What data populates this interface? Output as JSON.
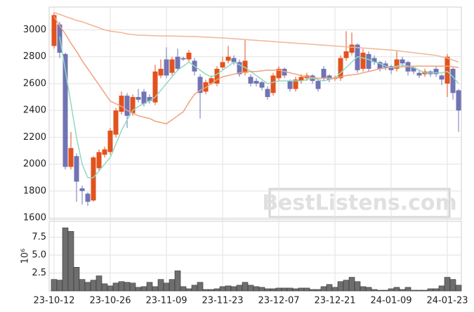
{
  "chart_data": [
    {
      "type": "candlestick",
      "annotation": "BestListens.com",
      "up_color": "#e2521d",
      "down_color": "#7073b5",
      "open": [
        2880,
        3040,
        2820,
        1980,
        2060,
        1820,
        1780,
        1730,
        1970,
        2070,
        2090,
        2220,
        2390,
        2510,
        2380,
        2500,
        2540,
        2500,
        2460,
        2660,
        2780,
        2680,
        2800,
        2790,
        2780,
        2770,
        2650,
        2540,
        2600,
        2600,
        2720,
        2770,
        2790,
        2760,
        2680,
        2650,
        2620,
        2610,
        2560,
        2530,
        2640,
        2710,
        2620,
        2560,
        2620,
        2640,
        2660,
        2620,
        2710,
        2660,
        2635,
        2640,
        2790,
        2830,
        2890,
        2710,
        2820,
        2790,
        2760,
        2750,
        2730,
        2710,
        2780,
        2760,
        2720,
        2680,
        2670,
        2690,
        2710,
        2660,
        2600,
        2710,
        2550
      ],
      "high": [
        3130,
        3060,
        2830,
        2240,
        2080,
        1840,
        1790,
        2060,
        2110,
        2130,
        2270,
        2420,
        2540,
        2530,
        2520,
        2560,
        2560,
        2520,
        2740,
        2780,
        2870,
        2800,
        2860,
        2800,
        2850,
        2790,
        2670,
        2630,
        2660,
        2730,
        2800,
        2880,
        2810,
        2780,
        2930,
        2670,
        2640,
        2620,
        2580,
        2680,
        2730,
        2720,
        2630,
        2650,
        2670,
        2680,
        2670,
        2630,
        2730,
        2670,
        2660,
        2810,
        2990,
        2980,
        2900,
        2860,
        2840,
        2810,
        2770,
        2770,
        2740,
        2840,
        2800,
        2770,
        2730,
        2700,
        2710,
        2700,
        2730,
        2670,
        2820,
        2720,
        2560
      ],
      "low": [
        2860,
        2790,
        1960,
        1960,
        1720,
        1700,
        1690,
        1720,
        1950,
        2050,
        2070,
        2200,
        2370,
        2270,
        2360,
        2460,
        2430,
        2450,
        2440,
        2640,
        2640,
        2660,
        2700,
        2770,
        2760,
        2660,
        2340,
        2520,
        2590,
        2580,
        2700,
        2750,
        2740,
        2650,
        2660,
        2580,
        2580,
        2550,
        2480,
        2510,
        2620,
        2640,
        2540,
        2540,
        2600,
        2620,
        2600,
        2540,
        2620,
        2610,
        2620,
        2620,
        2770,
        2810,
        2680,
        2690,
        2690,
        2740,
        2690,
        2700,
        2670,
        2690,
        2730,
        2660,
        2670,
        2640,
        2650,
        2650,
        2650,
        2590,
        2500,
        2480,
        2240
      ],
      "close": [
        3110,
        2830,
        1980,
        2120,
        1870,
        1800,
        1720,
        2050,
        2090,
        2110,
        2250,
        2400,
        2510,
        2360,
        2500,
        2480,
        2450,
        2470,
        2690,
        2710,
        2660,
        2780,
        2710,
        2780,
        2830,
        2690,
        2530,
        2610,
        2640,
        2710,
        2760,
        2800,
        2760,
        2670,
        2770,
        2600,
        2600,
        2570,
        2500,
        2660,
        2710,
        2660,
        2560,
        2630,
        2650,
        2660,
        2620,
        2560,
        2640,
        2630,
        2645,
        2790,
        2840,
        2890,
        2700,
        2830,
        2710,
        2760,
        2710,
        2720,
        2700,
        2780,
        2750,
        2690,
        2690,
        2660,
        2690,
        2670,
        2670,
        2630,
        2800,
        2530,
        2400
      ],
      "lines": [
        {
          "color": "#8fd9c0",
          "values": [
            null,
            2950,
            2700,
            2450,
            2200,
            2000,
            1900,
            1900,
            1950,
            2000,
            2050,
            2150,
            2250,
            2330,
            2400,
            2430,
            2450,
            2470,
            2500,
            2550,
            2600,
            2650,
            2700,
            2730,
            2760,
            2730,
            2700,
            2670,
            2650,
            2670,
            2700,
            2730,
            2760,
            2740,
            2720,
            2690,
            2660,
            2630,
            2600,
            2610,
            2620,
            2620,
            2620,
            2620,
            2620,
            2630,
            2640,
            2630,
            2620,
            2630,
            2640,
            2680,
            2720,
            2760,
            2800,
            2790,
            2780,
            2760,
            2750,
            2730,
            2720,
            2730,
            2740,
            2730,
            2720,
            2700,
            2680,
            2680,
            2680,
            2680,
            2690,
            2650,
            2600
          ]
        },
        {
          "color": "#eea27e",
          "values": [
            3100,
            3030,
            2970,
            2900,
            2840,
            2770,
            2710,
            2650,
            2590,
            2530,
            2470,
            2450,
            2430,
            2400,
            2380,
            2360,
            2350,
            2340,
            2320,
            2310,
            2300,
            2330,
            2360,
            2390,
            2460,
            2520,
            2550,
            2570,
            2600,
            2630,
            2650,
            2660,
            2670,
            2680,
            2685,
            2690,
            2690,
            2695,
            2700,
            2700,
            2700,
            2690,
            2680,
            2670,
            2660,
            2650,
            2645,
            2640,
            2640,
            2640,
            2640,
            2650,
            2660,
            2665,
            2670,
            2680,
            2690,
            2700,
            2710,
            2715,
            2720,
            2720,
            2725,
            2725,
            2730,
            2730,
            2730,
            2730,
            2730,
            2730,
            2730,
            2725,
            2720
          ]
        },
        {
          "color": "#f0b596",
          "values": [
            3130,
            3115,
            3100,
            3085,
            3070,
            3060,
            3045,
            3030,
            3015,
            3000,
            2990,
            2985,
            2980,
            2970,
            2965,
            2960,
            2960,
            2958,
            2956,
            2955,
            2955,
            2954,
            2953,
            2952,
            2951,
            2950,
            2948,
            2946,
            2944,
            2942,
            2940,
            2937,
            2934,
            2931,
            2928,
            2925,
            2922,
            2919,
            2916,
            2913,
            2910,
            2907,
            2904,
            2901,
            2898,
            2895,
            2892,
            2889,
            2886,
            2883,
            2880,
            2877,
            2874,
            2871,
            2868,
            2865,
            2862,
            2859,
            2856,
            2853,
            2850,
            2845,
            2840,
            2835,
            2830,
            2825,
            2820,
            2815,
            2810,
            2800,
            2790,
            2775,
            2760
          ]
        }
      ],
      "ylim": [
        1590,
        3170
      ],
      "yticks": [
        1600,
        1800,
        2000,
        2200,
        2400,
        2600,
        2800,
        3000
      ],
      "grid": true
    },
    {
      "type": "bar",
      "color": "#6e6e6e",
      "ylabel": "10⁶",
      "categories": [
        "23-10-12",
        null,
        null,
        null,
        null,
        null,
        null,
        null,
        null,
        null,
        "23-10-26",
        null,
        null,
        null,
        null,
        null,
        null,
        null,
        null,
        null,
        "23-11-09",
        null,
        null,
        null,
        null,
        null,
        null,
        null,
        null,
        null,
        "23-11-23",
        null,
        null,
        null,
        null,
        null,
        null,
        null,
        null,
        null,
        "23-12-07",
        null,
        null,
        null,
        null,
        null,
        null,
        null,
        null,
        null,
        "23-12-21",
        null,
        null,
        null,
        null,
        null,
        null,
        null,
        null,
        null,
        "24-01-09",
        null,
        null,
        null,
        null,
        null,
        null,
        null,
        null,
        null,
        "24-01-23",
        null,
        null
      ],
      "values": [
        1.6,
        1.5,
        8.8,
        8.3,
        3.3,
        1.6,
        1.2,
        1.5,
        2.1,
        1.0,
        0.7,
        1.1,
        1.3,
        1.2,
        1.1,
        0.5,
        0.6,
        1.2,
        0.6,
        1.6,
        1.1,
        1.6,
        2.8,
        0.6,
        0.3,
        0.8,
        1.2,
        0.2,
        0.2,
        0.3,
        0.6,
        0.7,
        0.6,
        0.8,
        1.2,
        0.8,
        0.6,
        0.5,
        0.3,
        0.3,
        0.4,
        0.4,
        0.4,
        0.3,
        0.4,
        0.4,
        0.2,
        0.2,
        0.6,
        0.9,
        0.5,
        1.3,
        1.5,
        1.9,
        1.3,
        0.6,
        0.5,
        0.2,
        0.1,
        0.1,
        0.3,
        0.5,
        0.2,
        0.5,
        0.1,
        0.1,
        0.1,
        0.3,
        0.3,
        0.7,
        1.9,
        1.6,
        0.8
      ],
      "ylim": [
        0,
        9.7
      ],
      "yticks": [
        2.5,
        {
          "value": 5,
          "label": "5.0"
        },
        7.5
      ],
      "grid": true
    }
  ]
}
